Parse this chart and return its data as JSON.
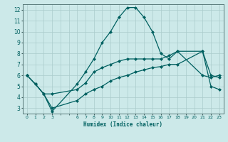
{
  "xlabel": "Humidex (Indice chaleur)",
  "xlim": [
    -0.5,
    23.5
  ],
  "ylim": [
    2.5,
    12.5
  ],
  "ytick_values": [
    3,
    4,
    5,
    6,
    7,
    8,
    9,
    10,
    11,
    12
  ],
  "background_color": "#cce9e9",
  "grid_color": "#aacccc",
  "line_color": "#006060",
  "line1_x": [
    0,
    1,
    2,
    3,
    6,
    7,
    8,
    9,
    10,
    11,
    12,
    13,
    14,
    15,
    16,
    17,
    18,
    21,
    22,
    23
  ],
  "line1_y": [
    6.0,
    5.2,
    4.3,
    2.7,
    5.2,
    6.3,
    7.5,
    9.0,
    10.0,
    11.3,
    12.2,
    12.2,
    11.3,
    10.0,
    8.0,
    7.5,
    8.2,
    6.0,
    5.8,
    6.0
  ],
  "line2_x": [
    0,
    1,
    2,
    3,
    6,
    7,
    8,
    9,
    10,
    11,
    12,
    13,
    14,
    15,
    16,
    17,
    18,
    21,
    22,
    23
  ],
  "line2_y": [
    6.0,
    5.2,
    4.3,
    4.3,
    4.7,
    5.3,
    6.3,
    6.7,
    7.0,
    7.3,
    7.5,
    7.5,
    7.5,
    7.5,
    7.5,
    7.8,
    8.2,
    8.2,
    6.0,
    5.8
  ],
  "line3_x": [
    0,
    1,
    2,
    3,
    6,
    7,
    8,
    9,
    10,
    11,
    12,
    13,
    14,
    15,
    16,
    17,
    18,
    21,
    22,
    23
  ],
  "line3_y": [
    6.0,
    5.2,
    4.3,
    3.0,
    3.7,
    4.3,
    4.7,
    5.0,
    5.5,
    5.8,
    6.0,
    6.3,
    6.5,
    6.7,
    6.8,
    7.0,
    7.0,
    8.2,
    5.0,
    4.7
  ],
  "markersize": 2.5,
  "linewidth": 0.9
}
